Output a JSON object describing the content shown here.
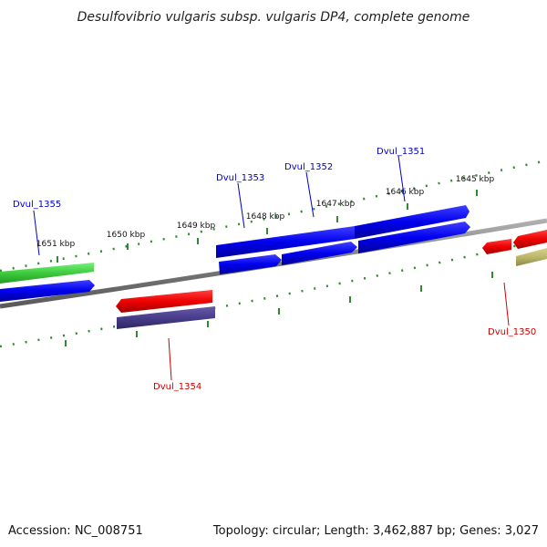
{
  "title": "Desulfovibrio vulgaris subsp. vulgaris DP4, complete genome",
  "accession": "Accession: NC_008751",
  "stats": "Topology: circular; Length: 3,462,887 bp; Genes: 3,027",
  "colors": {
    "backbone": "#808080",
    "tick": "#2e8b2e",
    "forward_label": "#0000cc",
    "reverse_label": "#cc0000"
  },
  "ticks": [
    {
      "text": "1651 kbp"
    },
    {
      "text": "1650 kbp"
    },
    {
      "text": "1649 kbp"
    },
    {
      "text": "1648 kbp"
    },
    {
      "text": "1647 kbp"
    },
    {
      "text": "1646 kbp"
    },
    {
      "text": "1645 kbp"
    }
  ],
  "genes": [
    {
      "label": "Dvul_1355",
      "strand": "forward",
      "color": "#0000ff"
    },
    {
      "label": "Dvul_1353",
      "strand": "forward",
      "color": "#0000ff"
    },
    {
      "label": "Dvul_1352",
      "strand": "forward",
      "color": "#0000ff"
    },
    {
      "label": "Dvul_1351",
      "strand": "forward",
      "color": "#0000ff"
    },
    {
      "label": "Dvul_1354",
      "strand": "reverse",
      "color": "#ee0000"
    },
    {
      "label": "Dvul_1350",
      "strand": "reverse",
      "color": "#ee0000"
    }
  ]
}
